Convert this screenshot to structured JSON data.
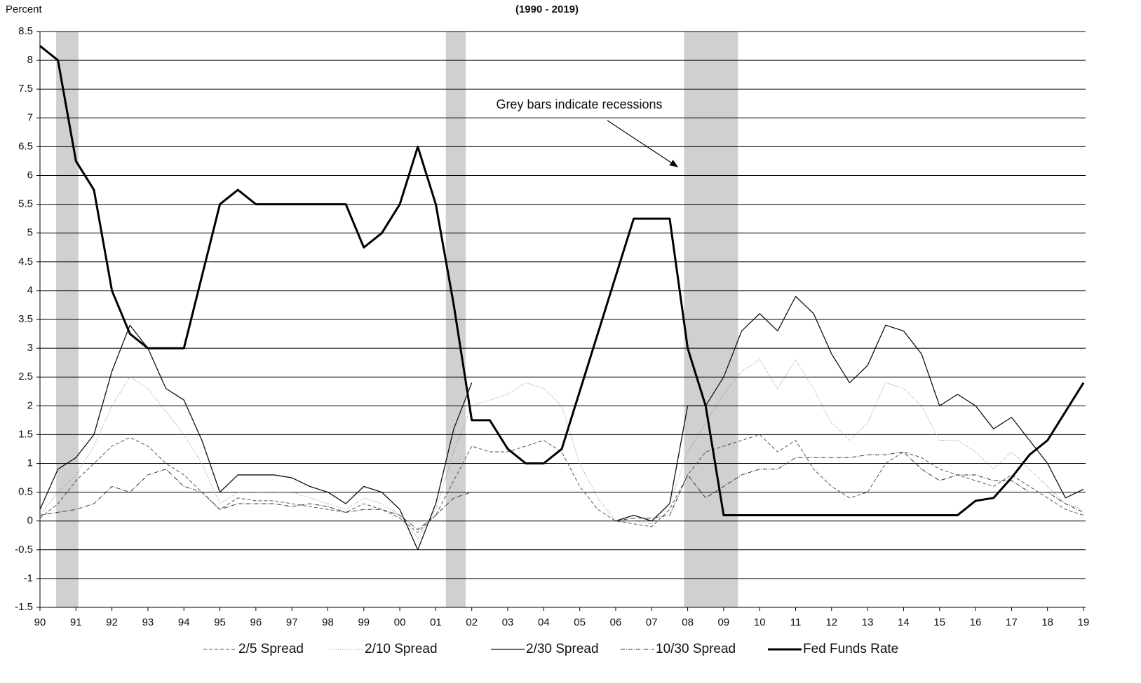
{
  "chart_data": {
    "type": "line",
    "title": "(1990 - 2019)",
    "y_label": "Percent",
    "annotation": "Grey bars indicate recessions",
    "recessions": [
      [
        1990.45,
        1991.07
      ],
      [
        2001.28,
        2001.83
      ],
      [
        2007.9,
        2009.4
      ]
    ],
    "recession_color": "#c8c8c8",
    "x": [
      1990,
      1990.5,
      1991,
      1991.5,
      1992,
      1992.5,
      1993,
      1993.5,
      1994,
      1994.5,
      1995,
      1995.5,
      1996,
      1996.5,
      1997,
      1997.5,
      1998,
      1998.5,
      1999,
      1999.5,
      2000,
      2000.5,
      2001,
      2001.5,
      2002,
      2002.5,
      2003,
      2003.5,
      2004,
      2004.5,
      2005,
      2005.5,
      2006,
      2006.5,
      2007,
      2007.5,
      2008,
      2008.5,
      2009,
      2009.5,
      2010,
      2010.5,
      2011,
      2011.5,
      2012,
      2012.5,
      2013,
      2013.5,
      2014,
      2014.5,
      2015,
      2015.5,
      2016,
      2016.5,
      2017,
      2017.5,
      2018,
      2018.5,
      2019
    ],
    "series": [
      {
        "name": "2/5 Spread",
        "color": "#555555",
        "dash": "5 3",
        "width": 1,
        "values": [
          0.05,
          0.3,
          0.7,
          1.0,
          1.3,
          1.45,
          1.3,
          1.0,
          0.8,
          0.5,
          0.2,
          0.4,
          0.35,
          0.35,
          0.3,
          0.25,
          0.2,
          0.15,
          0.3,
          0.2,
          0.05,
          -0.2,
          0.1,
          0.7,
          1.3,
          1.2,
          1.2,
          1.3,
          1.4,
          1.2,
          0.6,
          0.2,
          0.0,
          -0.05,
          -0.1,
          0.2,
          0.8,
          1.2,
          1.3,
          1.4,
          1.5,
          1.2,
          1.4,
          0.9,
          0.6,
          0.4,
          0.5,
          1.0,
          1.2,
          1.1,
          0.9,
          0.8,
          0.7,
          0.6,
          0.8,
          0.6,
          0.4,
          0.2,
          0.1
        ]
      },
      {
        "name": "2/10 Spread",
        "color": "#888888",
        "dash": "1 2",
        "width": 1,
        "values": [
          0.1,
          0.5,
          0.8,
          1.3,
          2.0,
          2.5,
          2.3,
          1.9,
          1.5,
          1.0,
          0.3,
          0.5,
          0.5,
          0.5,
          0.5,
          0.4,
          0.3,
          0.2,
          0.4,
          0.3,
          0.1,
          -0.3,
          0.2,
          1.2,
          2.0,
          2.1,
          2.2,
          2.4,
          2.3,
          2.0,
          1.0,
          0.4,
          0.0,
          0.0,
          -0.05,
          0.3,
          1.2,
          1.7,
          2.2,
          2.6,
          2.8,
          2.3,
          2.8,
          2.3,
          1.7,
          1.4,
          1.7,
          2.4,
          2.3,
          2.0,
          1.4,
          1.4,
          1.2,
          0.9,
          1.2,
          0.9,
          0.6,
          0.3,
          0.2
        ]
      },
      {
        "name": "2/30 Spread",
        "color": "#111111",
        "dash": "none",
        "width": 1.3,
        "values": [
          0.2,
          0.9,
          1.1,
          1.5,
          2.6,
          3.4,
          3.0,
          2.3,
          2.1,
          1.4,
          0.5,
          0.8,
          0.8,
          0.8,
          0.75,
          0.6,
          0.5,
          0.3,
          0.6,
          0.5,
          0.2,
          -0.5,
          0.3,
          1.6,
          2.4,
          null,
          null,
          null,
          null,
          null,
          null,
          null,
          0.0,
          0.1,
          0.0,
          0.3,
          2.0,
          2.0,
          2.5,
          3.3,
          3.6,
          3.3,
          3.9,
          3.6,
          2.9,
          2.4,
          2.7,
          3.4,
          3.3,
          2.9,
          2.0,
          2.2,
          2.0,
          1.6,
          1.8,
          1.4,
          1.0,
          0.4,
          0.55
        ]
      },
      {
        "name": "10/30 Spread",
        "color": "#333333",
        "dash": "6 2 1 2",
        "width": 1,
        "values": [
          0.1,
          0.15,
          0.2,
          0.3,
          0.6,
          0.5,
          0.8,
          0.9,
          0.6,
          0.5,
          0.2,
          0.3,
          0.3,
          0.3,
          0.25,
          0.3,
          0.25,
          0.15,
          0.2,
          0.2,
          0.1,
          -0.15,
          0.1,
          0.4,
          0.5,
          null,
          null,
          null,
          null,
          null,
          null,
          null,
          0.0,
          0.05,
          0.05,
          0.1,
          0.8,
          0.4,
          0.6,
          0.8,
          0.9,
          0.9,
          1.1,
          1.1,
          1.1,
          1.1,
          1.15,
          1.15,
          1.2,
          0.9,
          0.7,
          0.8,
          0.8,
          0.7,
          0.7,
          0.5,
          0.5,
          0.3,
          0.15
        ]
      },
      {
        "name": "Fed Funds Rate",
        "color": "#000000",
        "dash": "none",
        "width": 3,
        "values": [
          8.25,
          8.0,
          6.25,
          5.75,
          4.0,
          3.25,
          3.0,
          3.0,
          3.0,
          4.25,
          5.5,
          5.75,
          5.5,
          5.5,
          5.5,
          5.5,
          5.5,
          5.5,
          4.75,
          5.0,
          5.5,
          6.5,
          5.5,
          3.75,
          1.75,
          1.75,
          1.25,
          1.0,
          1.0,
          1.25,
          2.25,
          3.25,
          4.25,
          5.25,
          5.25,
          5.25,
          3.0,
          2.0,
          0.1,
          0.1,
          0.1,
          0.1,
          0.1,
          0.1,
          0.1,
          0.1,
          0.1,
          0.1,
          0.1,
          0.1,
          0.1,
          0.1,
          0.35,
          0.4,
          0.75,
          1.15,
          1.4,
          1.9,
          2.4
        ]
      }
    ],
    "xlim": [
      1990,
      2019
    ],
    "ylim": [
      -1.5,
      8.5
    ],
    "xticks": [
      {
        "value": 1990,
        "label": "90"
      },
      {
        "value": 1991,
        "label": "91"
      },
      {
        "value": 1992,
        "label": "92"
      },
      {
        "value": 1993,
        "label": "93"
      },
      {
        "value": 1994,
        "label": "94"
      },
      {
        "value": 1995,
        "label": "95"
      },
      {
        "value": 1996,
        "label": "96"
      },
      {
        "value": 1997,
        "label": "97"
      },
      {
        "value": 1998,
        "label": "98"
      },
      {
        "value": 1999,
        "label": "99"
      },
      {
        "value": 2000,
        "label": "00"
      },
      {
        "value": 2001,
        "label": "01"
      },
      {
        "value": 2002,
        "label": "02"
      },
      {
        "value": 2003,
        "label": "03"
      },
      {
        "value": 2004,
        "label": "04"
      },
      {
        "value": 2005,
        "label": "05"
      },
      {
        "value": 2006,
        "label": "06"
      },
      {
        "value": 2007,
        "label": "07"
      },
      {
        "value": 2008,
        "label": "08"
      },
      {
        "value": 2009,
        "label": "09"
      },
      {
        "value": 2010,
        "label": "10"
      },
      {
        "value": 2011,
        "label": "11"
      },
      {
        "value": 2012,
        "label": "12"
      },
      {
        "value": 2013,
        "label": "13"
      },
      {
        "value": 2014,
        "label": "14"
      },
      {
        "value": 2015,
        "label": "15"
      },
      {
        "value": 2016,
        "label": "16"
      },
      {
        "value": 2017,
        "label": "17"
      },
      {
        "value": 2018,
        "label": "18"
      },
      {
        "value": 2019,
        "label": "19"
      }
    ],
    "yticks": [
      -1.5,
      -1,
      -0.5,
      0,
      0.5,
      1,
      1.5,
      2,
      2.5,
      3,
      3.5,
      4,
      4.5,
      5,
      5.5,
      6,
      6.5,
      7,
      7.5,
      8,
      8.5
    ],
    "grid": true
  }
}
